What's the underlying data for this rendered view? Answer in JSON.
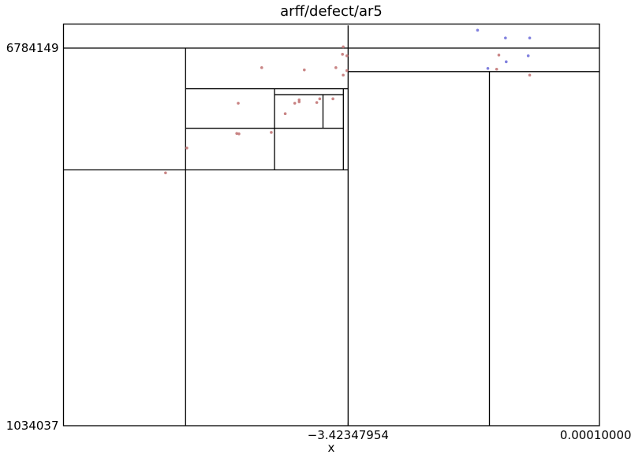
{
  "chart_data": {
    "type": "scatter",
    "title": "arff/defect/ar5",
    "xlabel": "x",
    "ylabel": "",
    "xlim": [
      -7.3,
      0.0001
    ],
    "ylim": [
      1034037,
      6784149
    ],
    "x_ticks": [
      {
        "value": -3.42347954,
        "label": "−3.42347954"
      },
      {
        "value": 0.0001,
        "label": "0.000100000"
      }
    ],
    "y_ticks": [
      {
        "value": 1034037,
        "label": "1034037"
      },
      {
        "value": 6784149,
        "label": "6784149"
      }
    ],
    "grid": false,
    "colors": {
      "class_a": "#c07070",
      "class_b": "#6a6ad8",
      "lines": "#000000"
    },
    "partition_lines": [
      {
        "orient": "h",
        "at": 6784149,
        "from": -7.3,
        "to": 0.0001
      },
      {
        "orient": "h",
        "at": 4929620,
        "from": -7.3,
        "to": -3.4235
      },
      {
        "orient": "h",
        "at": 6426300,
        "from": -3.4235,
        "to": 0.0001
      },
      {
        "orient": "v",
        "at": -3.4235,
        "from": 1034037,
        "to": 7130000
      },
      {
        "orient": "v",
        "at": -5.637,
        "from": 1034037,
        "to": 6784149
      },
      {
        "orient": "v",
        "at": -1.4985,
        "from": 1034037,
        "to": 6426300
      },
      {
        "orient": "h",
        "at": 6165250,
        "from": -5.637,
        "to": -3.4235
      },
      {
        "orient": "h",
        "at": 5563390,
        "from": -5.637,
        "to": -3.4881
      },
      {
        "orient": "v",
        "at": -3.4881,
        "from": 4929620,
        "to": 6165250
      },
      {
        "orient": "v",
        "at": -4.4254,
        "from": 4929620,
        "to": 6165250
      },
      {
        "orient": "h",
        "at": 6074900,
        "from": -4.4254,
        "to": -3.4881
      },
      {
        "orient": "v",
        "at": -3.7654,
        "from": 5563390,
        "to": 6074900
      }
    ],
    "series": [
      {
        "values": [
          [
            -4.6,
            6486000
          ],
          [
            -4.02,
            6452000
          ],
          [
            -4.92,
            5944000
          ],
          [
            -4.91,
            5478000
          ],
          [
            -4.94,
            5484000
          ],
          [
            -4.47,
            5500000
          ],
          [
            -4.28,
            5785000
          ],
          [
            -4.09,
            5966000
          ],
          [
            -4.15,
            5944000
          ],
          [
            -4.09,
            5996000
          ],
          [
            -3.85,
            5955000
          ],
          [
            -3.81,
            6012000
          ],
          [
            -3.63,
            6012000
          ],
          [
            -3.59,
            6486000
          ],
          [
            -3.5,
            6690000
          ],
          [
            -3.49,
            6803000
          ],
          [
            -3.44,
            6667000
          ],
          [
            -3.44,
            6441000
          ],
          [
            -3.49,
            6373000
          ],
          [
            -5.62,
            5263000
          ],
          [
            -5.91,
            4884000
          ],
          [
            -1.37,
            6678000
          ],
          [
            -1.4,
            6463000
          ],
          [
            -0.95,
            6373000
          ]
        ]
      },
      {
        "values": [
          [
            -1.66,
            7057000
          ],
          [
            -1.28,
            6938000
          ],
          [
            -0.95,
            6938000
          ],
          [
            -0.97,
            6667000
          ],
          [
            -1.27,
            6576000
          ],
          [
            -1.52,
            6475000
          ]
        ]
      }
    ]
  }
}
